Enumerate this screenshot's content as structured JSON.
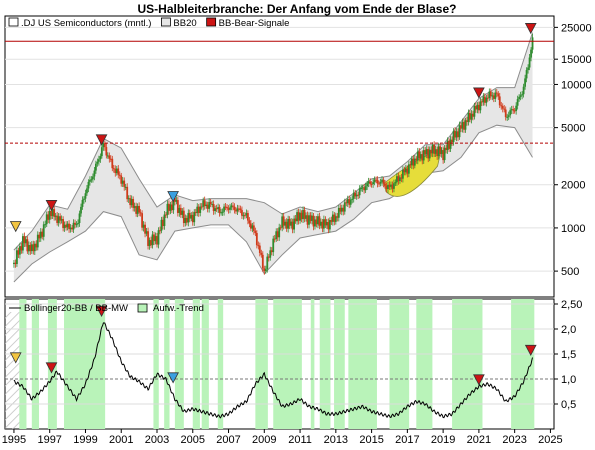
{
  "title": "US-Halbleiterbranche: Der Anfang vom Ende der Blase?",
  "colors": {
    "trend_fill": "#b9f3b9",
    "band_fill": "#e6e6e6",
    "band_line": "#8c8c8c",
    "candle_up": "#2e8b2e",
    "candle_down": "#d03a1a",
    "bubble_fill": "#e6dd3a",
    "signal_red": "#cc1414",
    "signal_blue": "#3a9fe0",
    "signal_yellow": "#f2c542",
    "hline_solid": "#b40000",
    "hline_dashed": "#b40000"
  },
  "legend_top": {
    "items": [
      {
        "label": ".DJ US Semiconductors (mntl.)",
        "symbol": "box-white"
      },
      {
        "label": "BB20",
        "symbol": "box-gray"
      },
      {
        "label": "BB-Bear-Signale",
        "symbol": "box-red"
      }
    ]
  },
  "legend_bottom": {
    "items": [
      {
        "label": "Bollinger20-BB / BB-MW",
        "symbol": "line-black"
      },
      {
        "label": "Aufw.-Trend",
        "symbol": "box-green"
      }
    ]
  },
  "chart_data": [
    {
      "type": "line",
      "panel": "price",
      "yscale": "log",
      "ylim": [
        330,
        30000
      ],
      "xlim": [
        1994.5,
        2025.2
      ],
      "x_ticks": [
        "1995",
        "1997",
        "1999",
        "2001",
        "2003",
        "2005",
        "2007",
        "2009",
        "2011",
        "2013",
        "2015",
        "2017",
        "2019",
        "2021",
        "2023",
        "2025"
      ],
      "y_ticks": [
        {
          "value": 500,
          "label": "500"
        },
        {
          "value": 1000,
          "label": "1000"
        },
        {
          "value": 2000,
          "label": "2000"
        },
        {
          "value": 5000,
          "label": "5000"
        },
        {
          "value": 10000,
          "label": "10000"
        },
        {
          "value": 15000,
          "label": "15000"
        },
        {
          "value": 25000,
          "label": "25000"
        }
      ],
      "horizontal_lines": [
        {
          "value": 20000,
          "style": "solid"
        },
        {
          "value": 3900,
          "style": "dashed"
        }
      ],
      "series": [
        {
          "name": ".DJ US Semiconductors (mntl.)",
          "x": [
            1995.0,
            1995.5,
            1996.0,
            1996.5,
            1997.0,
            1997.5,
            1998.0,
            1998.5,
            1999.0,
            1999.5,
            2000.0,
            2000.5,
            2001.0,
            2001.5,
            2002.0,
            2002.5,
            2003.0,
            2003.5,
            2004.0,
            2004.5,
            2005.0,
            2005.5,
            2006.0,
            2006.5,
            2007.0,
            2007.5,
            2008.0,
            2008.5,
            2009.0,
            2009.5,
            2010.0,
            2010.5,
            2011.0,
            2011.5,
            2012.0,
            2012.5,
            2013.0,
            2013.5,
            2014.0,
            2014.5,
            2015.0,
            2015.5,
            2016.0,
            2016.5,
            2017.0,
            2017.5,
            2018.0,
            2018.5,
            2019.0,
            2019.5,
            2020.0,
            2020.5,
            2021.0,
            2021.5,
            2022.0,
            2022.5,
            2023.0,
            2023.5,
            2024.0
          ],
          "values": [
            560,
            820,
            700,
            900,
            1300,
            1150,
            1000,
            1050,
            1800,
            2500,
            3800,
            2700,
            2200,
            1500,
            1300,
            800,
            850,
            1300,
            1550,
            1150,
            1200,
            1450,
            1450,
            1300,
            1400,
            1350,
            1200,
            900,
            500,
            800,
            1100,
            1050,
            1250,
            1150,
            1100,
            1050,
            1200,
            1450,
            1650,
            1900,
            2100,
            2100,
            1900,
            2200,
            2600,
            3100,
            3300,
            3500,
            3300,
            4200,
            5000,
            6000,
            7200,
            8300,
            8500,
            6000,
            6800,
            9500,
            20000
          ]
        },
        {
          "name": "BB20 upper",
          "x": [
            1995.0,
            1996.0,
            1997.0,
            1998.0,
            1999.0,
            2000.0,
            2001.0,
            2002.0,
            2003.0,
            2004.0,
            2005.0,
            2006.0,
            2007.0,
            2008.0,
            2009.0,
            2010.0,
            2011.0,
            2012.0,
            2013.0,
            2014.0,
            2015.0,
            2016.0,
            2017.0,
            2018.0,
            2019.0,
            2020.0,
            2021.0,
            2022.0,
            2023.0,
            2024.0
          ],
          "values": [
            700,
            950,
            1450,
            1350,
            2300,
            4200,
            3600,
            2200,
            1400,
            1700,
            1550,
            1600,
            1600,
            1600,
            1500,
            1250,
            1400,
            1300,
            1400,
            1750,
            2200,
            2300,
            2900,
            3800,
            3800,
            5500,
            8000,
            9500,
            9500,
            23000
          ]
        },
        {
          "name": "BB20 lower",
          "x": [
            1995.0,
            1996.0,
            1997.0,
            1998.0,
            1999.0,
            2000.0,
            2001.0,
            2002.0,
            2003.0,
            2004.0,
            2005.0,
            2006.0,
            2007.0,
            2008.0,
            2009.0,
            2010.0,
            2011.0,
            2012.0,
            2013.0,
            2014.0,
            2015.0,
            2016.0,
            2017.0,
            2018.0,
            2019.0,
            2020.0,
            2021.0,
            2022.0,
            2023.0,
            2024.0
          ],
          "values": [
            420,
            560,
            680,
            800,
            950,
            1300,
            1200,
            650,
            600,
            950,
            1000,
            1050,
            1050,
            800,
            480,
            650,
            850,
            900,
            950,
            1150,
            1500,
            1600,
            1900,
            2400,
            2500,
            3100,
            4600,
            5200,
            5000,
            3100
          ]
        }
      ],
      "signals": [
        {
          "x": 1995.1,
          "value": 1020,
          "color": "yellow"
        },
        {
          "x": 1997.1,
          "value": 1430,
          "color": "red"
        },
        {
          "x": 1999.9,
          "value": 4100,
          "color": "red"
        },
        {
          "x": 2003.9,
          "value": 1650,
          "color": "blue"
        },
        {
          "x": 2021.0,
          "value": 8700,
          "color": "red"
        },
        {
          "x": 2023.9,
          "value": 24500,
          "color": "red"
        }
      ],
      "highlight_region": {
        "x_start": 2015.8,
        "x_end": 2018.8,
        "label": ""
      }
    },
    {
      "type": "line",
      "panel": "indicator",
      "ylim": [
        0,
        2.6
      ],
      "y_ticks": [
        0.5,
        1.0,
        1.5,
        2.0,
        2.5
      ],
      "y_tick_labels": [
        "0,5",
        "1,0",
        "1,5",
        "2,0",
        "2,50"
      ],
      "reference_line": 1.0,
      "series": [
        {
          "name": "Bollinger20-BB / BB-MW",
          "x": [
            1995.0,
            1995.5,
            1996.0,
            1996.5,
            1997.0,
            1997.4,
            1998.0,
            1998.5,
            1999.0,
            1999.5,
            2000.0,
            2000.5,
            2001.0,
            2001.5,
            2002.0,
            2002.5,
            2003.0,
            2003.5,
            2004.0,
            2004.5,
            2005.0,
            2005.5,
            2006.0,
            2006.5,
            2007.0,
            2007.5,
            2008.0,
            2008.5,
            2009.0,
            2009.5,
            2010.0,
            2010.5,
            2011.0,
            2011.5,
            2012.0,
            2012.5,
            2013.0,
            2013.5,
            2014.0,
            2014.5,
            2015.0,
            2015.5,
            2016.0,
            2016.5,
            2017.0,
            2017.5,
            2018.0,
            2018.5,
            2019.0,
            2019.5,
            2020.0,
            2020.5,
            2021.0,
            2021.5,
            2022.0,
            2022.5,
            2023.0,
            2023.5,
            2024.0
          ],
          "values": [
            0.95,
            0.85,
            0.6,
            0.75,
            0.95,
            1.15,
            0.85,
            0.6,
            0.9,
            1.4,
            2.15,
            1.8,
            1.35,
            1.05,
            0.95,
            0.8,
            1.1,
            1.0,
            0.6,
            0.35,
            0.4,
            0.35,
            0.3,
            0.25,
            0.3,
            0.45,
            0.55,
            0.9,
            1.1,
            0.75,
            0.45,
            0.5,
            0.6,
            0.45,
            0.4,
            0.3,
            0.3,
            0.35,
            0.4,
            0.45,
            0.35,
            0.3,
            0.25,
            0.3,
            0.45,
            0.55,
            0.5,
            0.35,
            0.25,
            0.3,
            0.5,
            0.7,
            0.85,
            0.9,
            0.8,
            0.55,
            0.65,
            0.95,
            1.4
          ]
        }
      ],
      "trend_bands": [
        [
          1995.3,
          1995.7
        ],
        [
          1996.0,
          1996.4
        ],
        [
          1996.9,
          1997.4
        ],
        [
          1997.8,
          2000.1
        ],
        [
          2002.8,
          2003.1
        ],
        [
          2003.4,
          2003.7
        ],
        [
          2004.0,
          2004.5
        ],
        [
          2005.0,
          2005.4
        ],
        [
          2005.5,
          2005.9
        ],
        [
          2006.4,
          2006.7
        ],
        [
          2008.5,
          2009.2
        ],
        [
          2009.5,
          2011.1
        ],
        [
          2011.6,
          2011.8
        ],
        [
          2012.1,
          2012.7
        ],
        [
          2012.9,
          2013.5
        ],
        [
          2013.7,
          2015.3
        ],
        [
          2016.0,
          2017.1
        ],
        [
          2017.5,
          2018.4
        ],
        [
          2019.5,
          2021.2
        ],
        [
          2022.8,
          2024.1
        ]
      ],
      "signals": [
        {
          "x": 1995.1,
          "value": 1.42,
          "color": "yellow"
        },
        {
          "x": 1997.1,
          "value": 1.22,
          "color": "red"
        },
        {
          "x": 1999.9,
          "value": 2.35,
          "color": "red"
        },
        {
          "x": 2003.9,
          "value": 1.02,
          "color": "blue"
        },
        {
          "x": 2021.0,
          "value": 0.98,
          "color": "red"
        },
        {
          "x": 2023.9,
          "value": 1.57,
          "color": "red"
        }
      ]
    }
  ]
}
